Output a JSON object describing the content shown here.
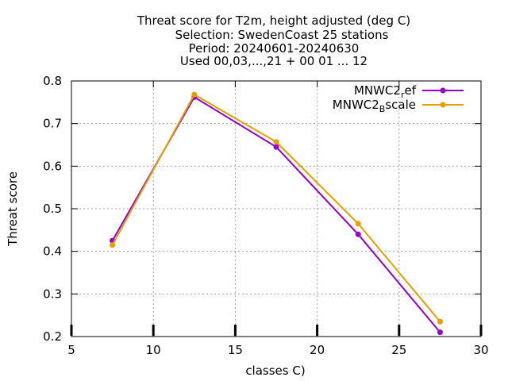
{
  "chart_data": {
    "type": "line",
    "title_lines": [
      "Threat score  for T2m, height adjusted (deg C)",
      "Selection: SwedenCoast     25 stations",
      "Period: 20240601-20240630",
      "Used 00,03,...,21 + 00 01 ... 12"
    ],
    "xlabel": "classes C)",
    "ylabel": "Threat score",
    "xlim": [
      5,
      30
    ],
    "ylim": [
      0.2,
      0.8
    ],
    "xticks": [
      "5",
      "10",
      "15",
      "20",
      "25",
      "30"
    ],
    "yticks": [
      "0.2",
      "0.3",
      "0.4",
      "0.5",
      "0.6",
      "0.7",
      "0.8"
    ],
    "grid": true,
    "legend_position": "top-right",
    "x": [
      7.5,
      12.5,
      17.5,
      22.5,
      27.5
    ],
    "series": [
      {
        "name_base": "MNWC2",
        "name_sub": "r",
        "name_rest": "ef",
        "color": "#9400d3",
        "values": [
          0.425,
          0.762,
          0.645,
          0.44,
          0.21
        ]
      },
      {
        "name_base": "MNWC2",
        "name_sub": "B",
        "name_rest": "scale",
        "color": "#e69f00",
        "values": [
          0.415,
          0.768,
          0.657,
          0.465,
          0.235
        ]
      }
    ]
  }
}
